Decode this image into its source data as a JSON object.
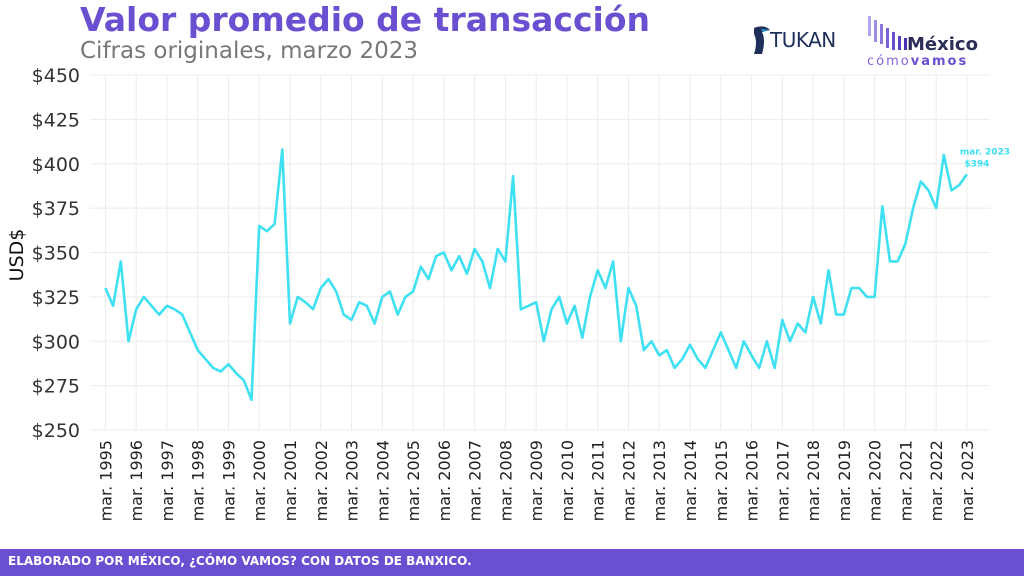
{
  "header": {
    "title": "Valor promedio de transacción",
    "subtitle": "Cifras originales, marzo 2023"
  },
  "logos": {
    "tukan": "TUKAN",
    "mexico": "México",
    "como": "cómo",
    "vamos": "vamos"
  },
  "footer": {
    "text": "ELABORADO POR MÉXICO, ¿CÓMO VAMOS? CON DATOS DE BANXICO."
  },
  "colors": {
    "title": "#6A4FD0",
    "line": "#3EE0F2",
    "footer": "#6A4FD0"
  },
  "chart_data": {
    "type": "line",
    "ylabel": "USD$",
    "ylim": [
      250,
      450
    ],
    "yticks": [
      250,
      275,
      300,
      325,
      350,
      375,
      400,
      425,
      450
    ],
    "ytick_labels": [
      "$250",
      "$275",
      "$300",
      "$325",
      "$350",
      "$375",
      "$400",
      "$425",
      "$450"
    ],
    "xlim": [
      1994.5,
      2023.75
    ],
    "xticks": [
      1995,
      1996,
      1997,
      1998,
      1999,
      2000,
      2001,
      2002,
      2003,
      2004,
      2005,
      2006,
      2007,
      2008,
      2009,
      2010,
      2011,
      2012,
      2013,
      2014,
      2015,
      2016,
      2017,
      2018,
      2019,
      2020,
      2021,
      2022,
      2023
    ],
    "xtick_labels": [
      "mar. 1995",
      "mar. 1996",
      "mar. 1997",
      "mar. 1998",
      "mar. 1999",
      "mar. 2000",
      "mar. 2001",
      "mar. 2002",
      "mar. 2003",
      "mar. 2004",
      "mar. 2005",
      "mar. 2006",
      "mar. 2007",
      "mar. 2008",
      "mar. 2009",
      "mar. 2010",
      "mar. 2011",
      "mar. 2012",
      "mar. 2013",
      "mar. 2014",
      "mar. 2015",
      "mar. 2016",
      "mar. 2017",
      "mar. 2018",
      "mar. 2019",
      "mar. 2020",
      "mar. 2021",
      "mar. 2022",
      "mar. 2023"
    ],
    "grid": true,
    "series": [
      {
        "x": [
          1995,
          1995.25,
          1995.5,
          1995.75,
          1996,
          1996.25,
          1996.5,
          1996.75,
          1997,
          1997.25,
          1997.5,
          1997.75,
          1998,
          1998.25,
          1998.5,
          1998.75,
          1999,
          1999.25,
          1999.5,
          1999.75,
          2000,
          2000.25,
          2000.5,
          2000.75,
          2001,
          2001.25,
          2001.5,
          2001.75,
          2002,
          2002.25,
          2002.5,
          2002.75,
          2003,
          2003.25,
          2003.5,
          2003.75,
          2004,
          2004.25,
          2004.5,
          2004.75,
          2005,
          2005.25,
          2005.5,
          2005.75,
          2006,
          2006.25,
          2006.5,
          2006.75,
          2007,
          2007.25,
          2007.5,
          2007.75,
          2008,
          2008.25,
          2008.5,
          2008.75,
          2009,
          2009.25,
          2009.5,
          2009.75,
          2010,
          2010.25,
          2010.5,
          2010.75,
          2011,
          2011.25,
          2011.5,
          2011.75,
          2012,
          2012.25,
          2012.5,
          2012.75,
          2013,
          2013.25,
          2013.5,
          2013.75,
          2014,
          2014.25,
          2014.5,
          2014.75,
          2015,
          2015.25,
          2015.5,
          2015.75,
          2016,
          2016.25,
          2016.5,
          2016.75,
          2017,
          2017.25,
          2017.5,
          2017.75,
          2018,
          2018.25,
          2018.5,
          2018.75,
          2019,
          2019.25,
          2019.5,
          2019.75,
          2020,
          2020.25,
          2020.5,
          2020.75,
          2021,
          2021.25,
          2021.5,
          2021.75,
          2022,
          2022.25,
          2022.5,
          2022.75,
          2023
        ],
        "y": [
          330,
          320,
          345,
          300,
          318,
          325,
          320,
          315,
          320,
          318,
          315,
          305,
          295,
          290,
          285,
          283,
          287,
          282,
          278,
          267,
          365,
          362,
          366,
          408,
          310,
          325,
          322,
          318,
          330,
          335,
          328,
          315,
          312,
          322,
          320,
          310,
          325,
          328,
          315,
          325,
          328,
          342,
          335,
          348,
          350,
          340,
          348,
          338,
          352,
          345,
          330,
          352,
          345,
          393,
          318,
          320,
          322,
          300,
          318,
          325,
          310,
          320,
          302,
          325,
          340,
          330,
          345,
          300,
          330,
          320,
          295,
          300,
          292,
          295,
          285,
          290,
          298,
          290,
          285,
          295,
          305,
          295,
          285,
          300,
          292,
          285,
          300,
          285,
          312,
          300,
          310,
          305,
          325,
          310,
          340,
          315,
          315,
          330,
          330,
          325,
          325,
          376,
          345,
          345,
          355,
          375,
          390,
          385,
          375,
          405,
          385,
          388,
          394
        ]
      }
    ],
    "annotation": {
      "date": "mar. 2023",
      "value": "$394",
      "x": 2023,
      "y": 394
    }
  }
}
